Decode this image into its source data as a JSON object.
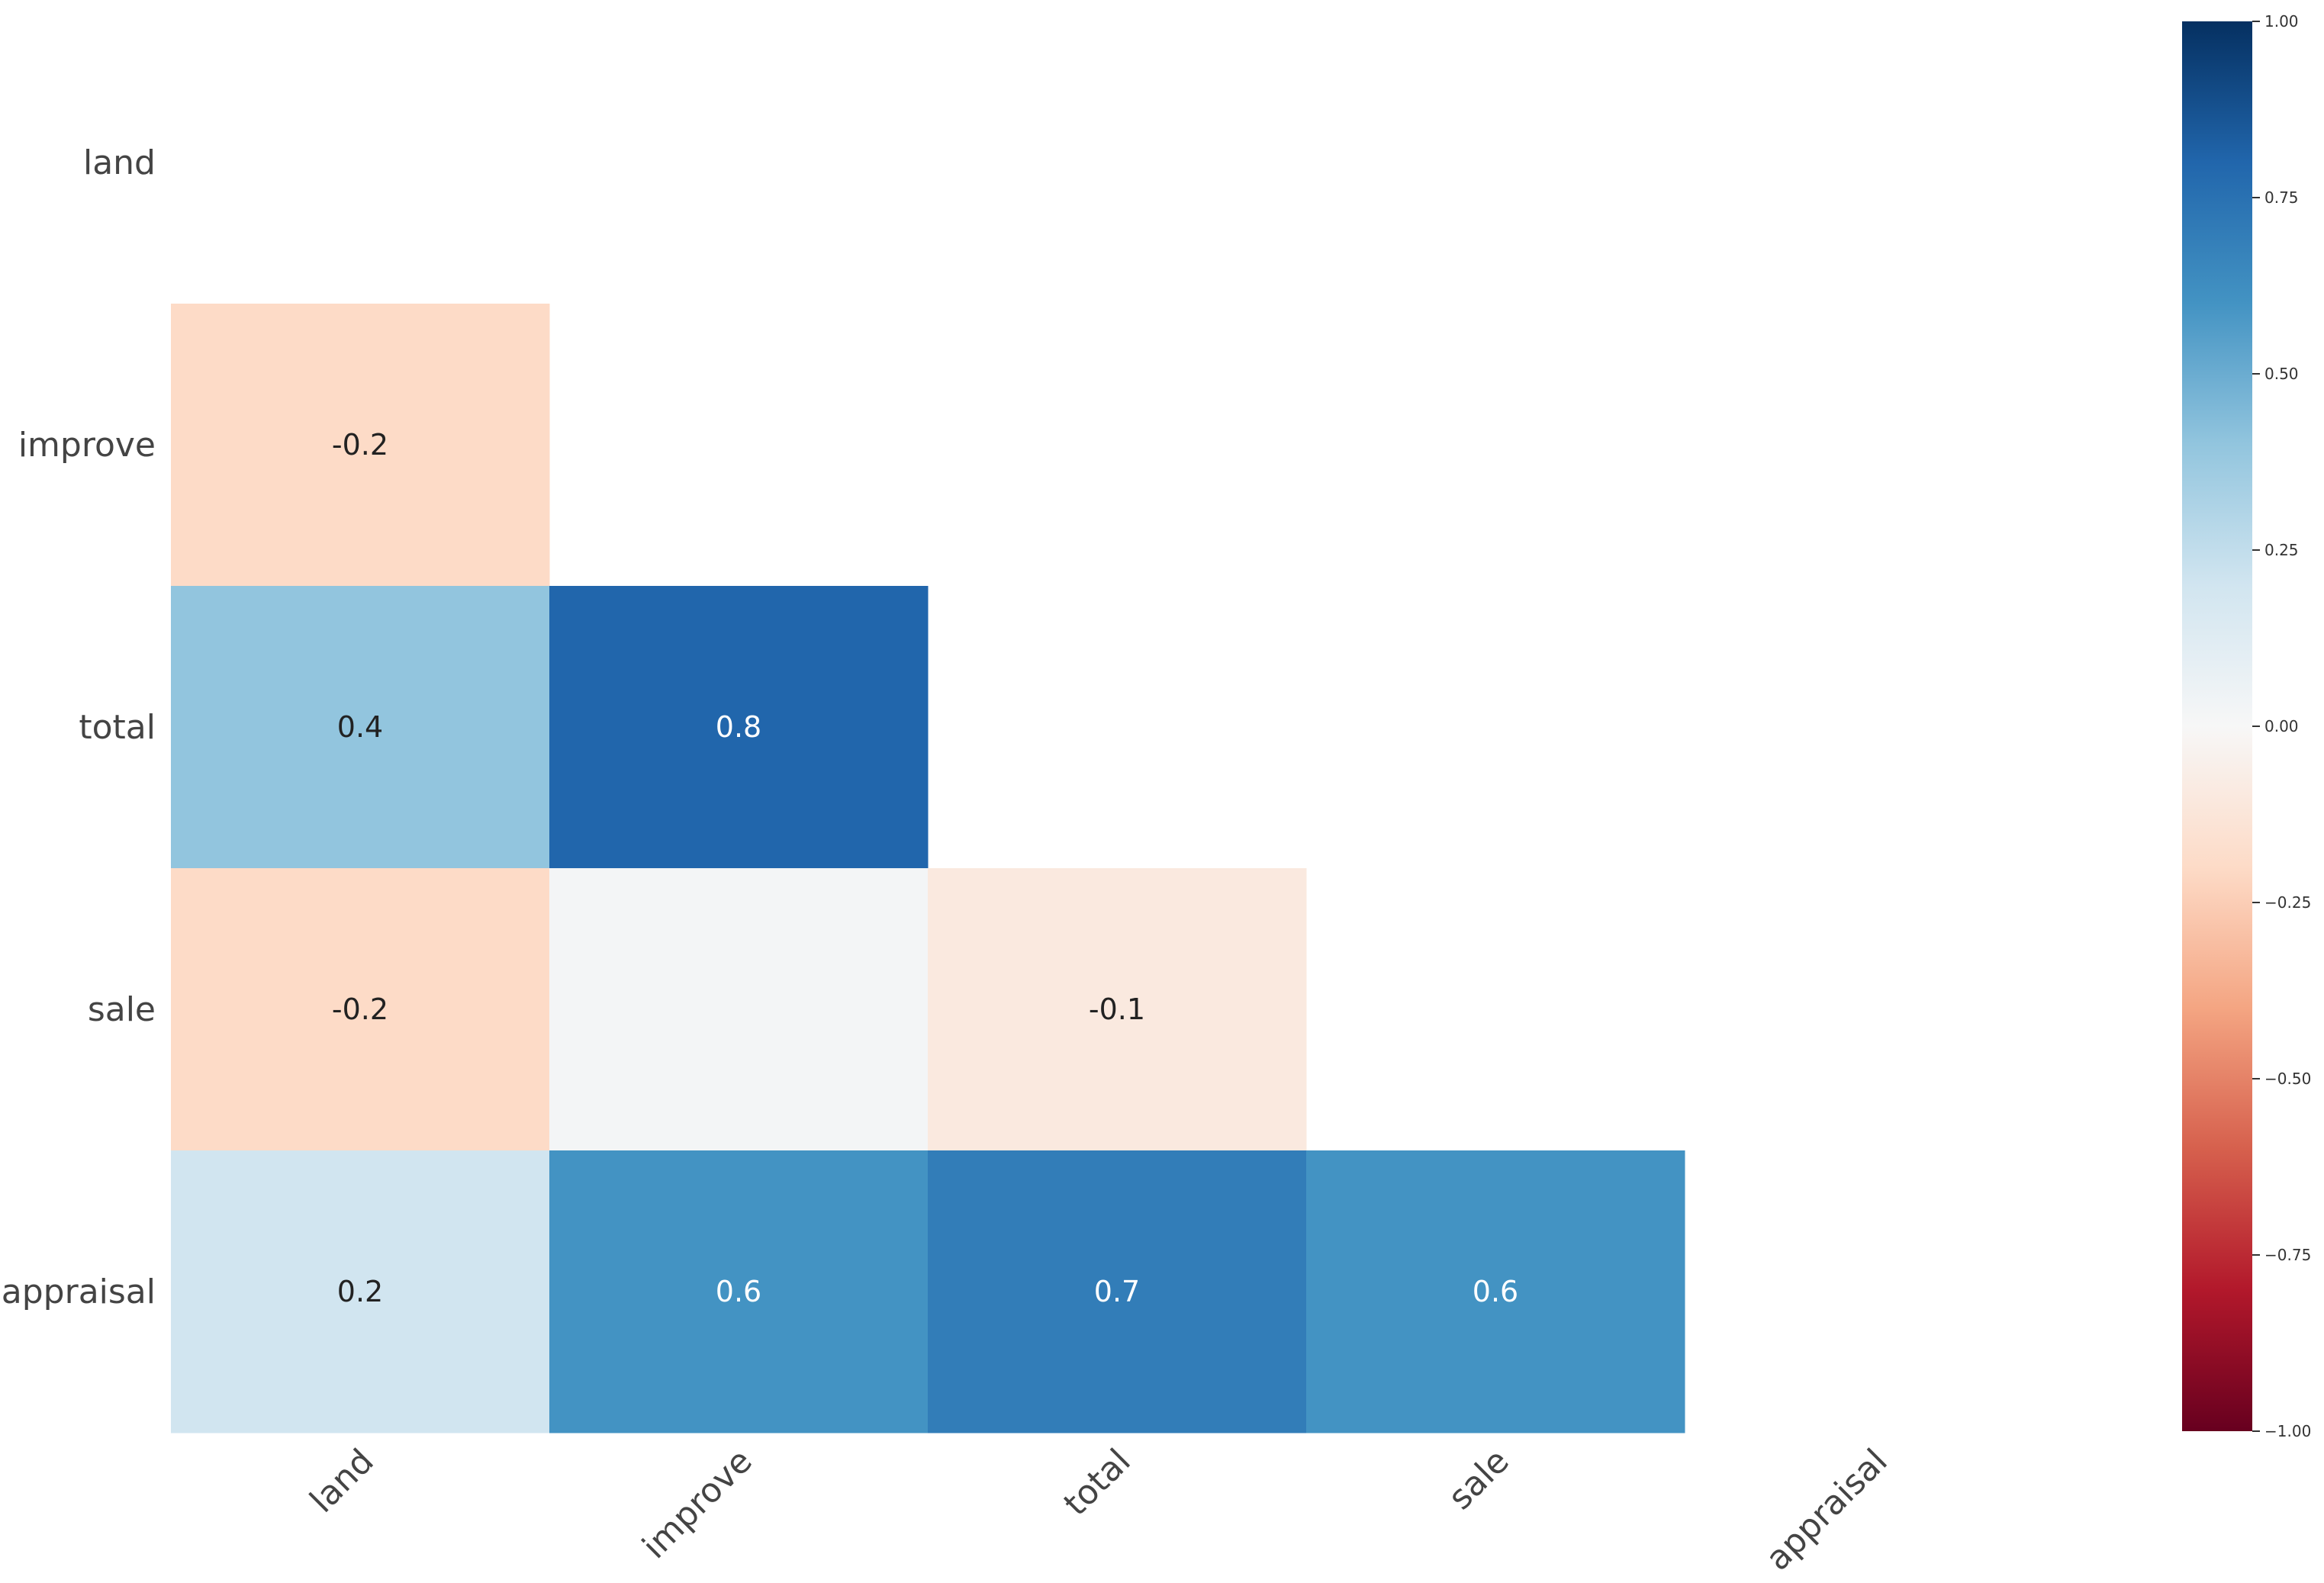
{
  "chart_data": {
    "type": "heatmap",
    "title": "",
    "xlabel": "",
    "ylabel": "",
    "rows": [
      "land",
      "improve",
      "total",
      "sale",
      "appraisal"
    ],
    "columns": [
      "land",
      "improve",
      "total",
      "sale",
      "appraisal"
    ],
    "mask": "upper-triangle-including-diagonal",
    "cells": [
      {
        "row": "improve",
        "col": "land",
        "value": -0.2,
        "label": "-0.2"
      },
      {
        "row": "total",
        "col": "land",
        "value": 0.4,
        "label": "0.4"
      },
      {
        "row": "total",
        "col": "improve",
        "value": 0.8,
        "label": "0.8"
      },
      {
        "row": "sale",
        "col": "land",
        "value": -0.2,
        "label": "-0.2"
      },
      {
        "row": "sale",
        "col": "improve",
        "value": 0.02,
        "label": ""
      },
      {
        "row": "sale",
        "col": "total",
        "value": -0.1,
        "label": "-0.1"
      },
      {
        "row": "appraisal",
        "col": "land",
        "value": 0.2,
        "label": "0.2"
      },
      {
        "row": "appraisal",
        "col": "improve",
        "value": 0.6,
        "label": "0.6"
      },
      {
        "row": "appraisal",
        "col": "total",
        "value": 0.7,
        "label": "0.7"
      },
      {
        "row": "appraisal",
        "col": "sale",
        "value": 0.6,
        "label": "0.6"
      }
    ],
    "colorbar": {
      "vmin": -1.0,
      "vmax": 1.0,
      "ticks": [
        1.0,
        0.75,
        0.5,
        0.25,
        0.0,
        -0.25,
        -0.5,
        -0.75,
        -1.0
      ],
      "tick_labels": [
        "1.00",
        "0.75",
        "0.50",
        "0.25",
        "0.00",
        "−0.25",
        "−0.50",
        "−0.75",
        "−1.00"
      ],
      "colormap": "RdBu",
      "colormap_stops": [
        "#67001f",
        "#b2182b",
        "#d6604d",
        "#f4a582",
        "#fddbc7",
        "#f7f7f7",
        "#d1e5f0",
        "#92c5de",
        "#4393c3",
        "#2166ac",
        "#053061"
      ],
      "placement": "right"
    },
    "grid": false,
    "legend": "none"
  }
}
